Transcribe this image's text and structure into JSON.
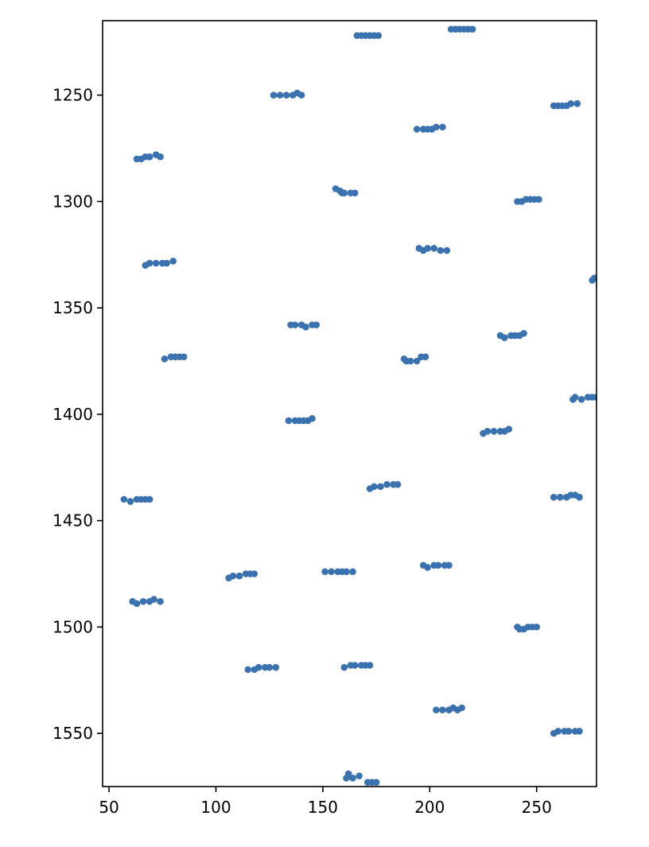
{
  "chart_data": {
    "type": "scatter",
    "title": "",
    "xlabel": "",
    "ylabel": "",
    "xlim": [
      47,
      278
    ],
    "ylim": [
      1575,
      1215
    ],
    "y_inverted": true,
    "grid": false,
    "legend": "none",
    "xticks": [
      "50",
      "100",
      "150",
      "200",
      "250"
    ],
    "yticks": [
      "1250",
      "1300",
      "1350",
      "1400",
      "1450",
      "1500",
      "1550"
    ],
    "series": [
      {
        "color": "#3a72b0",
        "points": [
          [
            166,
            1222
          ],
          [
            168,
            1222
          ],
          [
            170,
            1222
          ],
          [
            172,
            1222
          ],
          [
            174,
            1222
          ],
          [
            176,
            1222
          ],
          [
            210,
            1219
          ],
          [
            212,
            1219
          ],
          [
            214,
            1219
          ],
          [
            216,
            1219
          ],
          [
            218,
            1219
          ],
          [
            220,
            1219
          ],
          [
            127,
            1250
          ],
          [
            130,
            1250
          ],
          [
            133,
            1250
          ],
          [
            136,
            1250
          ],
          [
            138,
            1249
          ],
          [
            140,
            1250
          ],
          [
            258,
            1255
          ],
          [
            260,
            1255
          ],
          [
            262,
            1255
          ],
          [
            264,
            1255
          ],
          [
            266,
            1254
          ],
          [
            269,
            1254
          ],
          [
            194,
            1266
          ],
          [
            197,
            1266
          ],
          [
            199,
            1266
          ],
          [
            201,
            1266
          ],
          [
            203,
            1265
          ],
          [
            206,
            1265
          ],
          [
            63,
            1280
          ],
          [
            65,
            1280
          ],
          [
            67,
            1279
          ],
          [
            69,
            1279
          ],
          [
            72,
            1278
          ],
          [
            74,
            1279
          ],
          [
            156,
            1294
          ],
          [
            158,
            1295
          ],
          [
            159,
            1296
          ],
          [
            160,
            1296
          ],
          [
            163,
            1296
          ],
          [
            165,
            1296
          ],
          [
            241,
            1300
          ],
          [
            243,
            1300
          ],
          [
            245,
            1299
          ],
          [
            247,
            1299
          ],
          [
            249,
            1299
          ],
          [
            251,
            1299
          ],
          [
            195,
            1322
          ],
          [
            197,
            1323
          ],
          [
            199,
            1322
          ],
          [
            202,
            1322
          ],
          [
            205,
            1323
          ],
          [
            208,
            1323
          ],
          [
            67,
            1330
          ],
          [
            69,
            1329
          ],
          [
            72,
            1329
          ],
          [
            75,
            1329
          ],
          [
            77,
            1329
          ],
          [
            80,
            1328
          ],
          [
            276,
            1337
          ],
          [
            277,
            1336
          ],
          [
            278,
            1336
          ],
          [
            135,
            1358
          ],
          [
            137,
            1358
          ],
          [
            140,
            1358
          ],
          [
            142,
            1359
          ],
          [
            145,
            1358
          ],
          [
            147,
            1358
          ],
          [
            233,
            1363
          ],
          [
            235,
            1364
          ],
          [
            238,
            1363
          ],
          [
            240,
            1363
          ],
          [
            242,
            1363
          ],
          [
            244,
            1362
          ],
          [
            76,
            1374
          ],
          [
            79,
            1373
          ],
          [
            81,
            1373
          ],
          [
            83,
            1373
          ],
          [
            85,
            1373
          ],
          [
            188,
            1374
          ],
          [
            189,
            1375
          ],
          [
            191,
            1375
          ],
          [
            194,
            1375
          ],
          [
            196,
            1373
          ],
          [
            198,
            1373
          ],
          [
            267,
            1393
          ],
          [
            268,
            1392
          ],
          [
            271,
            1393
          ],
          [
            274,
            1392
          ],
          [
            276,
            1392
          ],
          [
            278,
            1392
          ],
          [
            134,
            1403
          ],
          [
            137,
            1403
          ],
          [
            139,
            1403
          ],
          [
            141,
            1403
          ],
          [
            143,
            1403
          ],
          [
            145,
            1402
          ],
          [
            225,
            1409
          ],
          [
            227,
            1408
          ],
          [
            230,
            1408
          ],
          [
            233,
            1408
          ],
          [
            235,
            1408
          ],
          [
            237,
            1407
          ],
          [
            172,
            1435
          ],
          [
            174,
            1434
          ],
          [
            177,
            1434
          ],
          [
            180,
            1433
          ],
          [
            183,
            1433
          ],
          [
            185,
            1433
          ],
          [
            57,
            1440
          ],
          [
            60,
            1441
          ],
          [
            63,
            1440
          ],
          [
            65,
            1440
          ],
          [
            67,
            1440
          ],
          [
            69,
            1440
          ],
          [
            258,
            1439
          ],
          [
            261,
            1439
          ],
          [
            264,
            1439
          ],
          [
            266,
            1438
          ],
          [
            268,
            1438
          ],
          [
            270,
            1439
          ],
          [
            106,
            1477
          ],
          [
            108,
            1476
          ],
          [
            111,
            1476
          ],
          [
            114,
            1475
          ],
          [
            116,
            1475
          ],
          [
            118,
            1475
          ],
          [
            151,
            1474
          ],
          [
            154,
            1474
          ],
          [
            157,
            1474
          ],
          [
            159,
            1474
          ],
          [
            161,
            1474
          ],
          [
            164,
            1474
          ],
          [
            197,
            1471
          ],
          [
            199,
            1472
          ],
          [
            202,
            1471
          ],
          [
            204,
            1471
          ],
          [
            207,
            1471
          ],
          [
            209,
            1471
          ],
          [
            61,
            1488
          ],
          [
            63,
            1489
          ],
          [
            66,
            1488
          ],
          [
            69,
            1488
          ],
          [
            71,
            1487
          ],
          [
            74,
            1488
          ],
          [
            241,
            1500
          ],
          [
            242,
            1501
          ],
          [
            244,
            1501
          ],
          [
            246,
            1500
          ],
          [
            248,
            1500
          ],
          [
            250,
            1500
          ],
          [
            115,
            1520
          ],
          [
            118,
            1520
          ],
          [
            120,
            1519
          ],
          [
            123,
            1519
          ],
          [
            125,
            1519
          ],
          [
            128,
            1519
          ],
          [
            160,
            1519
          ],
          [
            163,
            1518
          ],
          [
            165,
            1518
          ],
          [
            168,
            1518
          ],
          [
            170,
            1518
          ],
          [
            172,
            1518
          ],
          [
            203,
            1539
          ],
          [
            206,
            1539
          ],
          [
            209,
            1539
          ],
          [
            211,
            1538
          ],
          [
            213,
            1539
          ],
          [
            215,
            1538
          ],
          [
            258,
            1550
          ],
          [
            260,
            1549
          ],
          [
            263,
            1549
          ],
          [
            265,
            1549
          ],
          [
            268,
            1549
          ],
          [
            270,
            1549
          ],
          [
            161,
            1571
          ],
          [
            162,
            1569
          ],
          [
            164,
            1571
          ],
          [
            167,
            1570
          ],
          [
            171,
            1573
          ],
          [
            173,
            1573
          ],
          [
            175,
            1573
          ]
        ]
      }
    ]
  }
}
